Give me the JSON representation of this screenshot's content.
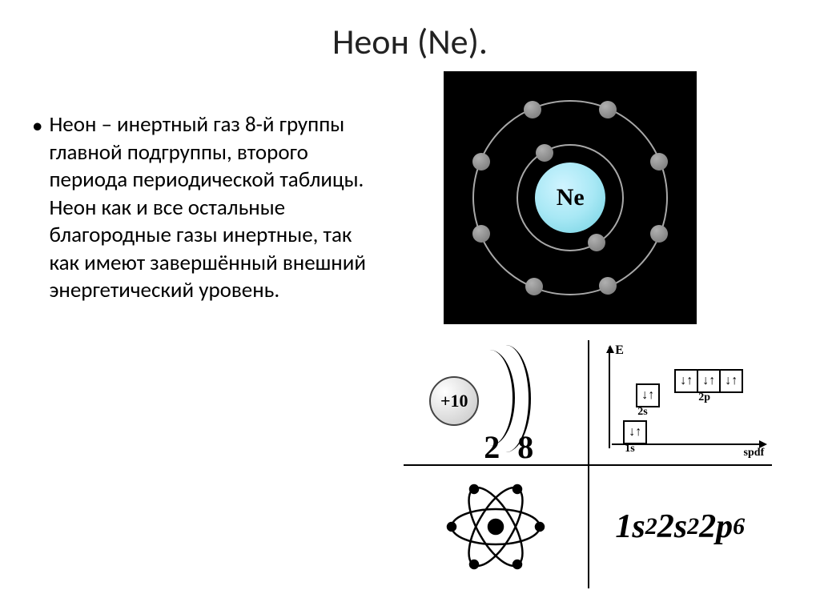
{
  "title": "Неон (Ne).",
  "bullet_text": "Неон – инертный газ 8-й группы главной подгруппы, второго периода периодической таблицы. Неон как и все остальные благородные газы инертные, так как имеют завершённый внешний энергетический уровень.",
  "bohr": {
    "symbol": "Ne",
    "background": "#000000",
    "shell_color": "#a8a8a8",
    "nucleus_color": "#a8e8f5",
    "electron_color": "#808080",
    "shell1_electrons": [
      {
        "angle": 60
      },
      {
        "angle": 240
      }
    ],
    "shell2_electrons": [
      {
        "angle": 247
      },
      {
        "angle": 293
      },
      {
        "angle": 338
      },
      {
        "angle": 22
      },
      {
        "angle": 67
      },
      {
        "angle": 112
      },
      {
        "angle": 158
      },
      {
        "angle": 202
      }
    ]
  },
  "shell_diagram": {
    "charge": "+10",
    "counts": "2 8"
  },
  "energy": {
    "axis_label": "E",
    "spdf_label": "spdf",
    "levels": {
      "1s": {
        "label": "1s",
        "boxes": [
          "↓↑"
        ]
      },
      "2s": {
        "label": "2s",
        "boxes": [
          "↓↑"
        ]
      },
      "2p": {
        "label": "2p",
        "boxes": [
          "↓↑",
          "↓↑",
          "↓↑"
        ]
      }
    }
  },
  "config_terms": [
    {
      "orbital": "1s",
      "exp": "2"
    },
    {
      "orbital": "2s",
      "exp": "2"
    },
    {
      "orbital": "2p",
      "exp": "6"
    }
  ],
  "colors": {
    "text": "#000000",
    "bg": "#ffffff",
    "diagram_line": "#000000"
  }
}
